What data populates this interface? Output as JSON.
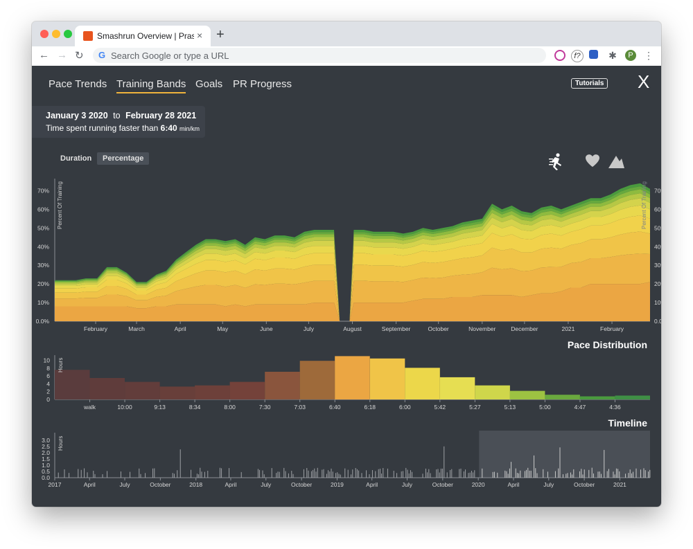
{
  "browser": {
    "tab_title": "Smashrun Overview | Prasanna",
    "tab_close": "×",
    "new_tab": "+",
    "omnibox_placeholder": "Search Google or type a URL",
    "back": "←",
    "forward": "→",
    "reload": "↻",
    "profile_initial": "P",
    "ext_f": "f?",
    "menu": "⋮",
    "colors": {
      "red": "#ff5f57",
      "yellow": "#febc2e",
      "green": "#28c840"
    }
  },
  "nav": {
    "tabs": [
      {
        "label": "Pace Trends"
      },
      {
        "label": "Training Bands"
      },
      {
        "label": "Goals"
      },
      {
        "label": "PR Progress"
      }
    ],
    "active_tab": "Training Bands",
    "tutorials_label": "Tutorials",
    "close_label": "X"
  },
  "info": {
    "from_date": "January 3 2020",
    "to_word": "to",
    "to_date": "February 28 2021",
    "prefix": "Time spent running faster than",
    "pace": "6:40",
    "unit": "min/km"
  },
  "toggles": {
    "duration": "Duration",
    "percentage": "Percentage",
    "selected": "Percentage"
  },
  "metric_icons": [
    "runner-icon",
    "heart-icon",
    "mountain-icon"
  ],
  "chart_data": [
    {
      "type": "area",
      "stacked": true,
      "ylabel": "Percent Of Training",
      "yticks": [
        "0.0%",
        "10%",
        "20%",
        "30%",
        "40%",
        "50%",
        "60%",
        "70%"
      ],
      "ylim": [
        0,
        75
      ],
      "xlim": [
        "2020-01-03",
        "2021-02-28"
      ],
      "xticks": [
        "February",
        "March",
        "April",
        "May",
        "June",
        "July",
        "August",
        "September",
        "October",
        "November",
        "December",
        "2021",
        "February"
      ],
      "band_colors": [
        "#eba643",
        "#eeb546",
        "#f0c448",
        "#f1d24b",
        "#e9d84d",
        "#d4d34c",
        "#b6c845",
        "#8ebb3f",
        "#66a93e",
        "#4a9a3e"
      ],
      "x": [
        "2020-01-03",
        "2020-01-18",
        "2020-01-25",
        "2020-02-02",
        "2020-02-09",
        "2020-02-16",
        "2020-02-23",
        "2020-03-01",
        "2020-03-08",
        "2020-03-15",
        "2020-03-22",
        "2020-03-29",
        "2020-04-05",
        "2020-04-12",
        "2020-04-19",
        "2020-04-26",
        "2020-05-03",
        "2020-05-10",
        "2020-05-17",
        "2020-05-24",
        "2020-05-31",
        "2020-06-07",
        "2020-06-14",
        "2020-06-21",
        "2020-06-28",
        "2020-07-05",
        "2020-07-12",
        "2020-07-19",
        "2020-07-23",
        "2020-07-30",
        "2020-08-02",
        "2020-08-09",
        "2020-08-16",
        "2020-08-23",
        "2020-08-30",
        "2020-09-06",
        "2020-09-13",
        "2020-09-20",
        "2020-09-27",
        "2020-10-04",
        "2020-10-11",
        "2020-10-18",
        "2020-10-25",
        "2020-11-01",
        "2020-11-08",
        "2020-11-15",
        "2020-11-22",
        "2020-11-29",
        "2020-12-06",
        "2020-12-13",
        "2020-12-20",
        "2020-12-27",
        "2021-01-03",
        "2021-01-10",
        "2021-01-17",
        "2021-01-24",
        "2021-01-31",
        "2021-02-07",
        "2021-02-14",
        "2021-02-21",
        "2021-02-28"
      ],
      "totals": [
        22,
        22,
        23,
        23,
        29,
        29,
        26,
        21,
        21,
        25,
        27,
        33,
        37,
        41,
        44,
        44,
        43,
        44,
        41,
        45,
        44,
        46,
        46,
        45,
        48,
        49,
        49,
        49,
        0,
        0,
        49,
        49,
        48,
        48,
        48,
        47,
        48,
        50,
        49,
        50,
        51,
        53,
        54,
        55,
        63,
        60,
        62,
        59,
        58,
        61,
        62,
        60,
        62,
        64,
        66,
        66,
        68,
        71,
        73,
        74,
        71
      ],
      "base": [
        8,
        8,
        8,
        8,
        8,
        8,
        8,
        7,
        7,
        8,
        8,
        9,
        9,
        9,
        9,
        9,
        8,
        9,
        8,
        9,
        9,
        9,
        9,
        9,
        9,
        10,
        10,
        10,
        0,
        0,
        10,
        10,
        10,
        10,
        10,
        10,
        11,
        12,
        12,
        12,
        13,
        13,
        13,
        14,
        14,
        14,
        14,
        13,
        14,
        15,
        15,
        16,
        18,
        18,
        20,
        20,
        20,
        20,
        20,
        20,
        21
      ]
    },
    {
      "type": "bar",
      "title": "Pace Distribution",
      "ylabel": "Hours",
      "yticks": [
        0,
        2,
        4,
        6,
        8,
        10
      ],
      "ylim": [
        0,
        11
      ],
      "categories": [
        "",
        "walk",
        "10:00",
        "9:13",
        "8:34",
        "8:00",
        "7:30",
        "7:03",
        "6:40",
        "6:18",
        "6:00",
        "5:42",
        "5:27",
        "5:13",
        "5:00",
        "4:47",
        "4:36"
      ],
      "values": [
        7.6,
        5.5,
        4.5,
        3.3,
        3.6,
        4.5,
        7.1,
        9.9,
        11.1,
        10.5,
        8.1,
        5.7,
        3.6,
        2.2,
        1.2,
        0.8,
        1.0
      ],
      "colors": [
        "#5a3c3d",
        "#5f3c3b",
        "#623d3b",
        "#683f3a",
        "#6d403a",
        "#74423a",
        "#8a553d",
        "#9e6a3a",
        "#eba643",
        "#f0c448",
        "#ecd74a",
        "#e6de52",
        "#cfd64b",
        "#9dc242",
        "#6aa83e",
        "#4a9a3e",
        "#3f8f45"
      ]
    },
    {
      "type": "bar",
      "title": "Timeline",
      "ylabel": "Hours",
      "yticks": [
        "0.0",
        "0.5",
        "1.0",
        "1.5",
        "2.0",
        "2.5",
        "3.0"
      ],
      "ylim": [
        0,
        3.5
      ],
      "xlim": [
        "2017-01-01",
        "2021-03-20"
      ],
      "xticks": [
        "2017",
        "April",
        "July",
        "October",
        "2018",
        "April",
        "July",
        "October",
        "2019",
        "April",
        "July",
        "October",
        "2020",
        "April",
        "July",
        "October",
        "2021"
      ],
      "brush": [
        "2020-01-03",
        "2021-03-20"
      ]
    }
  ]
}
